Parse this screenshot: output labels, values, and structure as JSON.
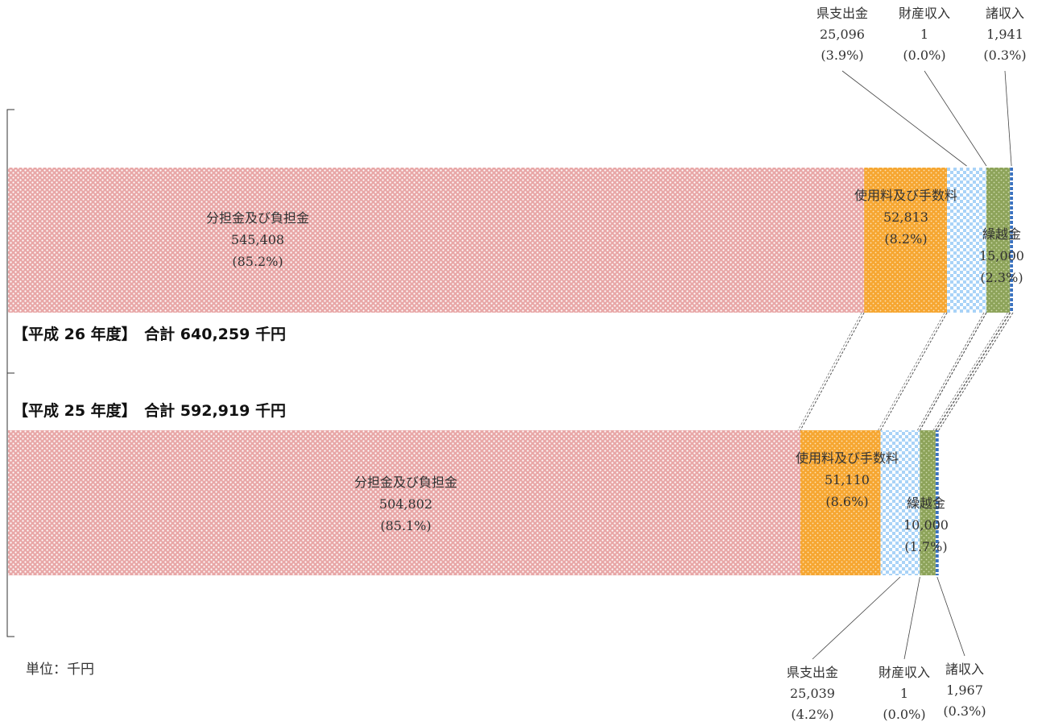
{
  "chart_data": {
    "type": "bar",
    "orientation": "horizontal",
    "stacked": true,
    "unit_label": "単位：千円",
    "colors": {
      "share": "#e8a7a7",
      "usage_fees": "#f6a631",
      "prefecture": "#a9d3f7",
      "carryover": "#8da35a",
      "misc": "#3a72c0",
      "property": "#c8c8c8"
    },
    "years": [
      {
        "header": "【平成 26 年度】　合計 640,259 千円",
        "total": 640259,
        "segments": [
          {
            "key": "share",
            "name": "分担金及び負担金",
            "value": 545408,
            "value_text": "545,408",
            "pct_text": "(85.2%)"
          },
          {
            "key": "usage_fees",
            "name": "使用料及び手数料",
            "value": 52813,
            "value_text": "52,813",
            "pct_text": "(8.2%)"
          },
          {
            "key": "prefecture",
            "name": "県支出金",
            "value": 25096,
            "value_text": "25,096",
            "pct_text": "(3.9%)"
          },
          {
            "key": "property",
            "name": "財産収入",
            "value": 1,
            "value_text": "1",
            "pct_text": "(0.0%)"
          },
          {
            "key": "carryover",
            "name": "繰越金",
            "value": 15000,
            "value_text": "15,000",
            "pct_text": "(2.3%)"
          },
          {
            "key": "misc",
            "name": "諸収入",
            "value": 1941,
            "value_text": "1,941",
            "pct_text": "(0.3%)"
          }
        ]
      },
      {
        "header": "【平成 25 年度】　合計 592,919 千円",
        "total": 592919,
        "segments": [
          {
            "key": "share",
            "name": "分担金及び負担金",
            "value": 504802,
            "value_text": "504,802",
            "pct_text": "(85.1%)"
          },
          {
            "key": "usage_fees",
            "name": "使用料及び手数料",
            "value": 51110,
            "value_text": "51,110",
            "pct_text": "(8.6%)"
          },
          {
            "key": "prefecture",
            "name": "県支出金",
            "value": 25039,
            "value_text": "25,039",
            "pct_text": "(4.2%)"
          },
          {
            "key": "property",
            "name": "財産収入",
            "value": 1,
            "value_text": "1",
            "pct_text": "(0.0%)"
          },
          {
            "key": "carryover",
            "name": "繰越金",
            "value": 10000,
            "value_text": "10,000",
            "pct_text": "(1.7%)"
          },
          {
            "key": "misc",
            "name": "諸収入",
            "value": 1967,
            "value_text": "1,967",
            "pct_text": "(0.3%)"
          }
        ]
      }
    ]
  }
}
